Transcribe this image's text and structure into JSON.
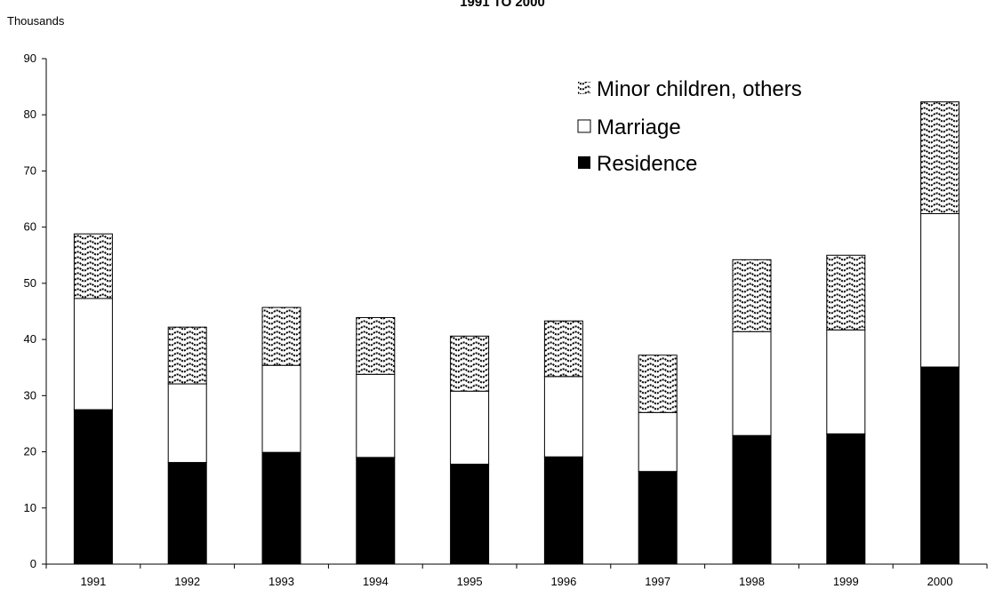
{
  "chart_data": {
    "type": "bar",
    "stacked": true,
    "title": "1991 TO 2000",
    "ylabel": "Thousands",
    "xlabel": "",
    "ylim": [
      0,
      90
    ],
    "yticks": [
      0,
      10,
      20,
      30,
      40,
      50,
      60,
      70,
      80,
      90
    ],
    "grid": false,
    "legend_position": "top-right",
    "categories": [
      "1991",
      "1992",
      "1993",
      "1994",
      "1995",
      "1996",
      "1997",
      "1998",
      "1999",
      "2000"
    ],
    "series": [
      {
        "name": "Residence",
        "pattern": "solid-black",
        "values": [
          27.5,
          18.1,
          19.9,
          19.0,
          17.8,
          19.1,
          16.5,
          22.9,
          23.2,
          35.1
        ]
      },
      {
        "name": "Marriage",
        "pattern": "white",
        "values": [
          19.8,
          14.0,
          15.5,
          14.8,
          13.0,
          14.3,
          10.5,
          18.5,
          18.5,
          27.3
        ]
      },
      {
        "name": "Minor children, others",
        "pattern": "wave-hatch",
        "values": [
          11.5,
          10.1,
          10.3,
          10.1,
          9.8,
          9.9,
          10.2,
          12.8,
          13.3,
          19.9
        ]
      }
    ],
    "legend_order": [
      "Minor children, others",
      "Marriage",
      "Residence"
    ]
  }
}
